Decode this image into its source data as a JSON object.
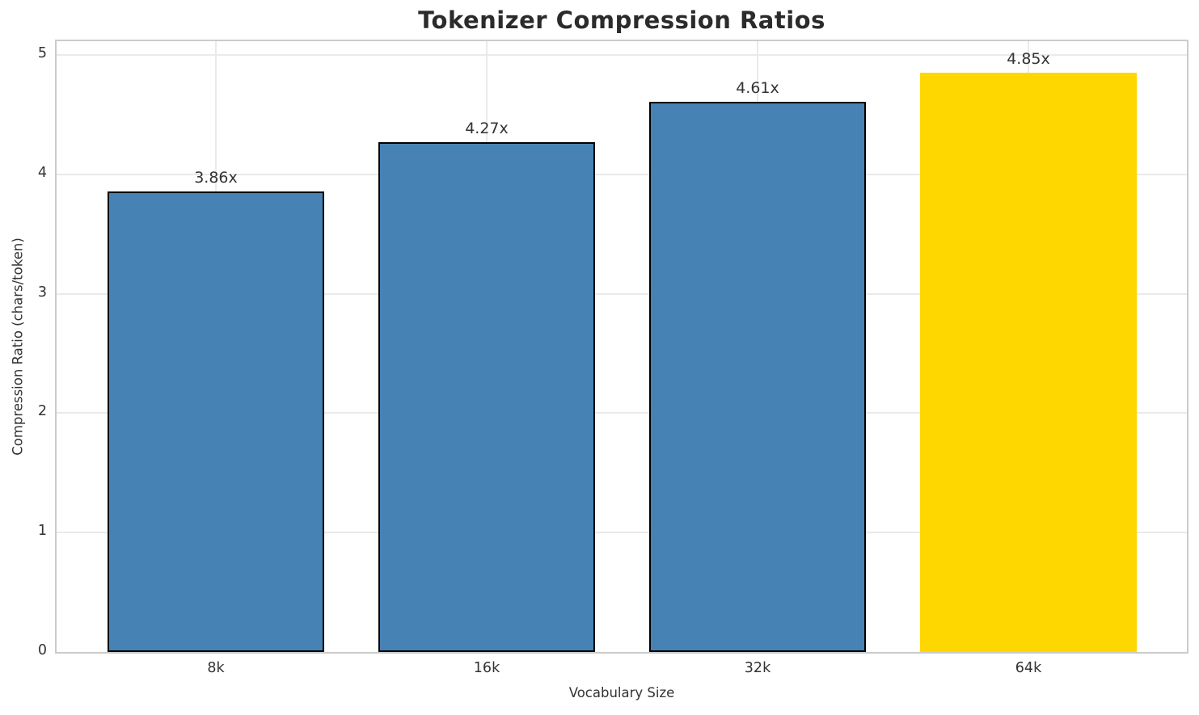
{
  "chart_data": {
    "type": "bar",
    "title": "Tokenizer Compression Ratios",
    "xlabel": "Vocabulary Size",
    "ylabel": "Compression Ratio (chars/token)",
    "categories": [
      "8k",
      "16k",
      "32k",
      "64k"
    ],
    "values": [
      3.86,
      4.27,
      4.61,
      4.85
    ],
    "bar_labels": [
      "3.86x",
      "4.27x",
      "4.61x",
      "4.85x"
    ],
    "yticks": [
      0,
      1,
      2,
      3,
      4,
      5
    ],
    "ylim": [
      0,
      5.11
    ],
    "grid": true,
    "legend": "none",
    "bar_colors": [
      "#4682B4",
      "#4682B4",
      "#4682B4",
      "#FFD700"
    ],
    "bar_edge_colors": [
      "#000000",
      "#000000",
      "#000000",
      "#FFD700"
    ],
    "highlight_index": 3
  },
  "colors": {
    "background": "#ffffff",
    "title_text": "#2b2b2b",
    "tick_text": "#333333",
    "spine": "#cbcbcb",
    "gridline": "#eaeaea",
    "bar_blue": "#4682B4",
    "bar_gold": "#FFD700",
    "bar_edge": "#000000"
  }
}
